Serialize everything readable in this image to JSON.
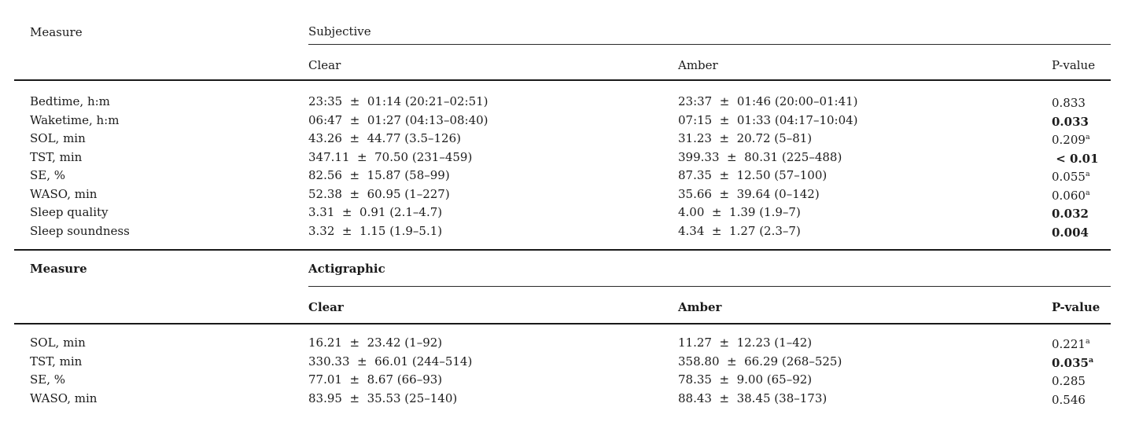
{
  "table": {
    "sections": [
      {
        "measure_label": "Measure",
        "group_label": "Subjective",
        "columns": {
          "clear": "Clear",
          "amber": "Amber",
          "p": "P-value"
        },
        "rows": [
          {
            "measure": "Bedtime, h:m",
            "clear": "23:35  ±  01:14 (20:21–02:51)",
            "amber": "23:37  ±  01:46 (20:00–01:41)",
            "p": "0.833",
            "p_sup": "",
            "p_bold": false
          },
          {
            "measure": "Waketime, h:m",
            "clear": "06:47  ±  01:27 (04:13–08:40)",
            "amber": "07:15  ±  01:33 (04:17–10:04)",
            "p": "0.033",
            "p_sup": "",
            "p_bold": true
          },
          {
            "measure": "SOL, min",
            "clear": "43.26  ±  44.77 (3.5–126)",
            "amber": "31.23  ±  20.72 (5–81)",
            "p": "0.209",
            "p_sup": "a",
            "p_bold": false
          },
          {
            "measure": "TST, min",
            "clear": "347.11  ±  70.50 (231–459)",
            "amber": "399.33  ±  80.31 (225–488)",
            "p": " < 0.01",
            "p_sup": "",
            "p_bold": true
          },
          {
            "measure": "SE, %",
            "clear": "82.56  ±  15.87 (58–99)",
            "amber": "87.35  ±  12.50 (57–100)",
            "p": "0.055",
            "p_sup": "a",
            "p_bold": false
          },
          {
            "measure": "WASO, min",
            "clear": "52.38  ±  60.95 (1–227)",
            "amber": "35.66  ±  39.64 (0–142)",
            "p": "0.060",
            "p_sup": "a",
            "p_bold": false
          },
          {
            "measure": "Sleep quality",
            "clear": "3.31  ±  0.91 (2.1–4.7)",
            "amber": "4.00  ±  1.39 (1.9–7)",
            "p": "0.032",
            "p_sup": "",
            "p_bold": true
          },
          {
            "measure": "Sleep soundness",
            "clear": "3.32  ±  1.15 (1.9–5.1)",
            "amber": "4.34  ±  1.27 (2.3–7)",
            "p": "0.004",
            "p_sup": "",
            "p_bold": true
          }
        ]
      },
      {
        "measure_label": "Measure",
        "group_label": "Actigraphic",
        "columns": {
          "clear": "Clear",
          "amber": "Amber",
          "p": "P-value"
        },
        "rows": [
          {
            "measure": "SOL, min",
            "clear": "16.21  ±  23.42 (1–92)",
            "amber": "11.27  ±  12.23 (1–42)",
            "p": "0.221",
            "p_sup": "a",
            "p_bold": false
          },
          {
            "measure": "TST, min",
            "clear": "330.33  ±  66.01 (244–514)",
            "amber": "358.80  ±  66.29 (268–525)",
            "p": "0.035",
            "p_sup": "a",
            "p_bold": true
          },
          {
            "measure": "SE, %",
            "clear": "77.01  ±  8.67 (66–93)",
            "amber": "78.35  ±  9.00 (65–92)",
            "p": "0.285",
            "p_sup": "",
            "p_bold": false
          },
          {
            "measure": "WASO, min",
            "clear": "83.95  ±  35.53 (25–140)",
            "amber": "88.43  ±  38.45 (38–173)",
            "p": "0.546",
            "p_sup": "",
            "p_bold": false
          }
        ]
      }
    ]
  }
}
